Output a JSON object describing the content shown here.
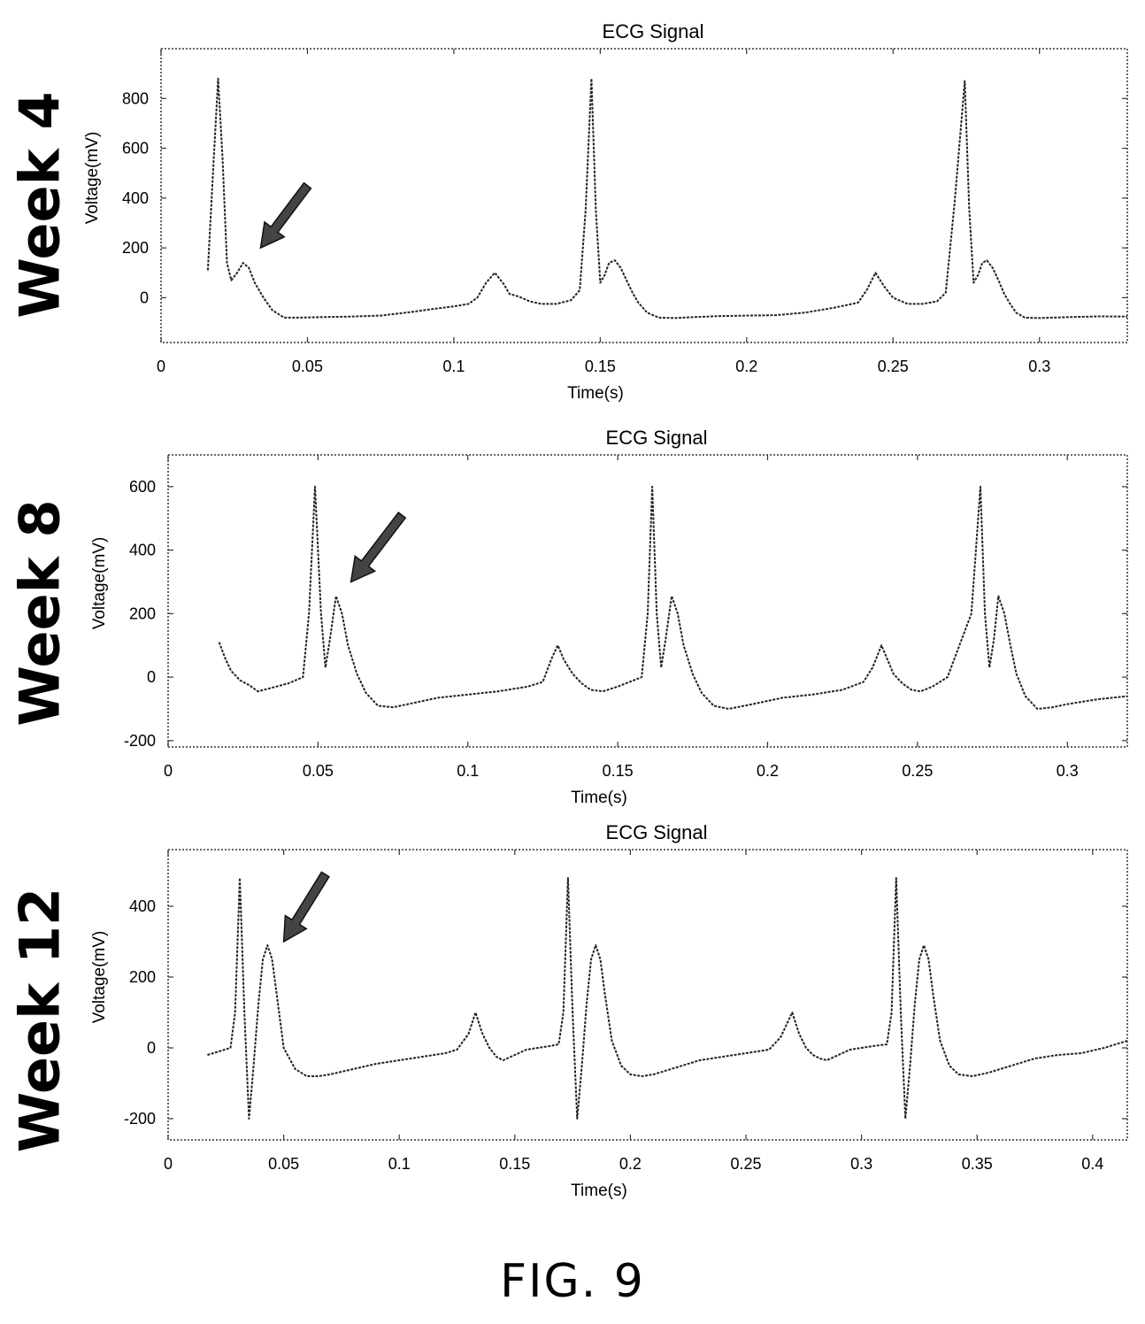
{
  "figure": {
    "label": "FIG. 9"
  },
  "chart_data": [
    {
      "type": "line",
      "panel_label": "Week 4",
      "title": "ECG Signal",
      "xlabel": "Time(s)",
      "ylabel": "Voltage(mV)",
      "xlim": [
        0,
        0.33
      ],
      "ylim": [
        -180,
        1000
      ],
      "xticks": [
        0,
        0.05,
        0.1,
        0.15,
        0.2,
        0.25,
        0.3
      ],
      "xtick_labels": [
        "0",
        "0.05",
        "0.1",
        "0.15",
        "0.2",
        "0.25",
        "0.3"
      ],
      "yticks": [
        0,
        200,
        400,
        600,
        800
      ],
      "ytick_labels": [
        "0",
        "200",
        "400",
        "600",
        "800"
      ],
      "grid": false,
      "arrow": {
        "from": [
          0.05,
          450
        ],
        "to": [
          0.034,
          200
        ]
      },
      "series": [
        {
          "x": [
            0.016,
            0.018,
            0.0195,
            0.021,
            0.0225,
            0.024,
            0.026,
            0.028,
            0.03,
            0.032,
            0.035,
            0.038,
            0.042,
            0.047,
            0.055,
            0.065,
            0.075,
            0.085,
            0.095,
            0.1,
            0.105,
            0.108,
            0.111,
            0.114,
            0.117,
            0.119,
            0.122,
            0.126,
            0.13,
            0.135,
            0.14,
            0.143,
            0.145,
            0.147,
            0.1485,
            0.15,
            0.1515,
            0.153,
            0.155,
            0.157,
            0.159,
            0.161,
            0.163,
            0.166,
            0.17,
            0.175,
            0.182,
            0.19,
            0.2,
            0.21,
            0.22,
            0.23,
            0.238,
            0.241,
            0.244,
            0.247,
            0.25,
            0.255,
            0.26,
            0.265,
            0.268,
            0.271,
            0.2745,
            0.276,
            0.2775,
            0.279,
            0.2805,
            0.282,
            0.284,
            0.286,
            0.288,
            0.29,
            0.292,
            0.295,
            0.3,
            0.31,
            0.32,
            0.33
          ],
          "y": [
            110,
            560,
            880,
            560,
            140,
            70,
            100,
            140,
            120,
            60,
            0,
            -50,
            -80,
            -80,
            -78,
            -76,
            -72,
            -58,
            -42,
            -35,
            -25,
            0,
            60,
            100,
            55,
            15,
            5,
            -15,
            -25,
            -25,
            -10,
            30,
            350,
            880,
            350,
            60,
            90,
            140,
            150,
            120,
            70,
            20,
            -20,
            -60,
            -80,
            -82,
            -78,
            -74,
            -72,
            -70,
            -60,
            -40,
            -20,
            30,
            100,
            45,
            0,
            -25,
            -25,
            -15,
            20,
            380,
            870,
            360,
            60,
            90,
            140,
            150,
            120,
            70,
            15,
            -25,
            -60,
            -80,
            -82,
            -78,
            -75,
            -76
          ]
        }
      ]
    },
    {
      "type": "line",
      "panel_label": "Week 8",
      "title": "ECG Signal",
      "xlabel": "Time(s)",
      "ylabel": "Voltage(mV)",
      "xlim": [
        0,
        0.32
      ],
      "ylim": [
        -220,
        700
      ],
      "xticks": [
        0,
        0.05,
        0.1,
        0.15,
        0.2,
        0.25,
        0.3
      ],
      "xtick_labels": [
        "0",
        "0.05",
        "0.1",
        "0.15",
        "0.2",
        "0.25",
        "0.3"
      ],
      "yticks": [
        -200,
        0,
        200,
        400,
        600
      ],
      "ytick_labels": [
        "-200",
        "0",
        "200",
        "400",
        "600"
      ],
      "grid": false,
      "arrow": {
        "from": [
          0.078,
          510
        ],
        "to": [
          0.061,
          300
        ]
      },
      "series": [
        {
          "x": [
            0.017,
            0.019,
            0.021,
            0.024,
            0.027,
            0.03,
            0.034,
            0.04,
            0.045,
            0.047,
            0.049,
            0.051,
            0.0525,
            0.054,
            0.056,
            0.058,
            0.06,
            0.063,
            0.066,
            0.07,
            0.075,
            0.08,
            0.09,
            0.1,
            0.11,
            0.12,
            0.125,
            0.128,
            0.13,
            0.132,
            0.135,
            0.138,
            0.141,
            0.145,
            0.15,
            0.158,
            0.16,
            0.1615,
            0.163,
            0.1645,
            0.166,
            0.168,
            0.17,
            0.172,
            0.175,
            0.178,
            0.182,
            0.187,
            0.195,
            0.205,
            0.215,
            0.225,
            0.232,
            0.235,
            0.238,
            0.24,
            0.242,
            0.245,
            0.248,
            0.251,
            0.255,
            0.26,
            0.268,
            0.271,
            0.2725,
            0.274,
            0.2755,
            0.277,
            0.279,
            0.281,
            0.283,
            0.286,
            0.29,
            0.295,
            0.3,
            0.31,
            0.32
          ],
          "y": [
            110,
            60,
            20,
            -10,
            -25,
            -45,
            -35,
            -20,
            0,
            200,
            600,
            200,
            30,
            120,
            255,
            200,
            100,
            10,
            -50,
            -90,
            -95,
            -85,
            -65,
            -55,
            -45,
            -30,
            -15,
            60,
            100,
            55,
            10,
            -20,
            -40,
            -45,
            -30,
            0,
            200,
            600,
            200,
            30,
            120,
            255,
            200,
            100,
            10,
            -50,
            -90,
            -100,
            -85,
            -65,
            -55,
            -40,
            -15,
            30,
            100,
            55,
            10,
            -20,
            -40,
            -45,
            -30,
            0,
            200,
            600,
            200,
            30,
            120,
            255,
            200,
            100,
            10,
            -60,
            -100,
            -95,
            -85,
            -70,
            -60
          ]
        }
      ]
    },
    {
      "type": "line",
      "panel_label": "Week 12",
      "title": "ECG Signal",
      "xlabel": "Time(s)",
      "ylabel": "Voltage(mV)",
      "xlim": [
        0,
        0.415
      ],
      "ylim": [
        -260,
        560
      ],
      "xticks": [
        0,
        0.05,
        0.1,
        0.15,
        0.2,
        0.25,
        0.3,
        0.35,
        0.4
      ],
      "xtick_labels": [
        "0",
        "0.05",
        "0.1",
        "0.15",
        "0.2",
        "0.25",
        "0.3",
        "0.35",
        "0.4"
      ],
      "yticks": [
        -200,
        0,
        200,
        400
      ],
      "ytick_labels": [
        "-200",
        "0",
        "200",
        "400"
      ],
      "grid": false,
      "arrow": {
        "from": [
          0.068,
          490
        ],
        "to": [
          0.05,
          300
        ]
      },
      "series": [
        {
          "x": [
            0.017,
            0.022,
            0.027,
            0.029,
            0.031,
            0.033,
            0.035,
            0.037,
            0.039,
            0.041,
            0.043,
            0.045,
            0.047,
            0.05,
            0.055,
            0.06,
            0.065,
            0.07,
            0.08,
            0.09,
            0.1,
            0.11,
            0.12,
            0.125,
            0.13,
            0.133,
            0.136,
            0.139,
            0.142,
            0.145,
            0.15,
            0.155,
            0.16,
            0.165,
            0.169,
            0.171,
            0.173,
            0.175,
            0.177,
            0.179,
            0.181,
            0.183,
            0.185,
            0.187,
            0.189,
            0.192,
            0.196,
            0.2,
            0.205,
            0.21,
            0.22,
            0.23,
            0.24,
            0.25,
            0.26,
            0.265,
            0.27,
            0.273,
            0.276,
            0.279,
            0.282,
            0.285,
            0.29,
            0.295,
            0.3,
            0.305,
            0.311,
            0.313,
            0.315,
            0.317,
            0.319,
            0.321,
            0.323,
            0.325,
            0.327,
            0.329,
            0.331,
            0.334,
            0.338,
            0.342,
            0.348,
            0.355,
            0.365,
            0.375,
            0.385,
            0.395,
            0.405,
            0.415
          ],
          "y": [
            -20,
            -10,
            0,
            100,
            480,
            100,
            -200,
            -50,
            120,
            250,
            290,
            250,
            150,
            0,
            -60,
            -80,
            -80,
            -75,
            -60,
            -45,
            -35,
            -25,
            -15,
            -5,
            40,
            100,
            40,
            0,
            -25,
            -35,
            -20,
            -5,
            0,
            5,
            10,
            100,
            480,
            100,
            -200,
            -50,
            120,
            250,
            290,
            250,
            150,
            20,
            -50,
            -75,
            -80,
            -75,
            -55,
            -35,
            -25,
            -15,
            -5,
            30,
            100,
            40,
            0,
            -20,
            -30,
            -35,
            -20,
            -5,
            0,
            5,
            10,
            100,
            480,
            100,
            -200,
            -50,
            120,
            250,
            290,
            250,
            150,
            20,
            -50,
            -75,
            -80,
            -70,
            -50,
            -30,
            -20,
            -15,
            0,
            20
          ]
        }
      ]
    }
  ]
}
